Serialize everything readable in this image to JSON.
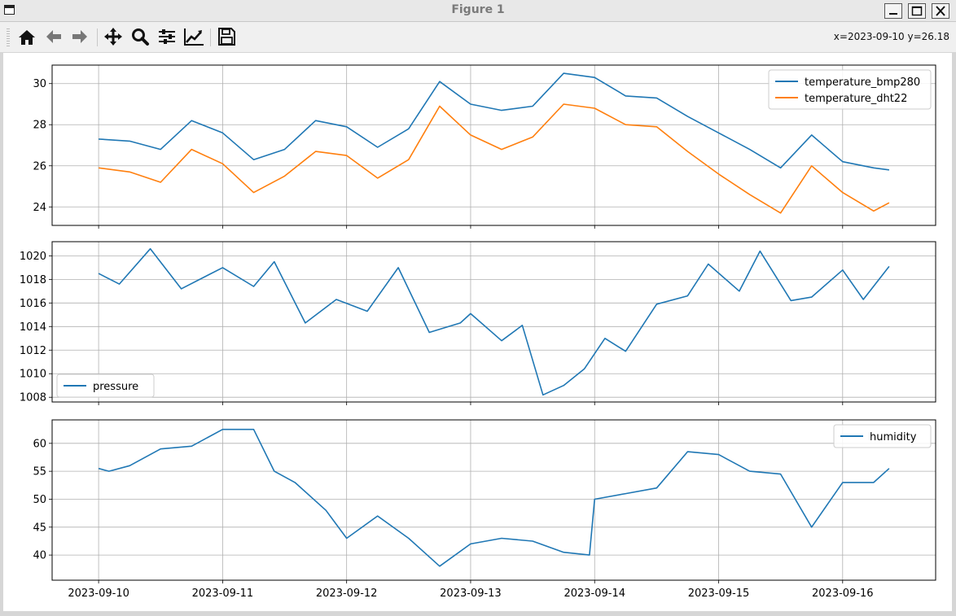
{
  "window": {
    "title": "Figure 1"
  },
  "toolbar": {
    "coords": "x=2023-09-10 y=26.18",
    "buttons": [
      "home-icon",
      "back-arrow-icon",
      "forward-arrow-icon",
      "pan-icon",
      "zoom-icon",
      "configure-subplots-icon",
      "edit-axis-icon",
      "save-icon"
    ]
  },
  "chart_data": [
    {
      "type": "line",
      "series": [
        {
          "name": "temperature_bmp280",
          "color": "#1f77b4",
          "x": [
            "2023-09-10 00:00",
            "2023-09-10 06:00",
            "2023-09-10 12:00",
            "2023-09-10 18:00",
            "2023-09-11 00:00",
            "2023-09-11 06:00",
            "2023-09-11 12:00",
            "2023-09-11 18:00",
            "2023-09-12 00:00",
            "2023-09-12 06:00",
            "2023-09-12 12:00",
            "2023-09-12 18:00",
            "2023-09-13 00:00",
            "2023-09-13 06:00",
            "2023-09-13 12:00",
            "2023-09-13 18:00",
            "2023-09-14 00:00",
            "2023-09-14 06:00",
            "2023-09-14 12:00",
            "2023-09-14 18:00",
            "2023-09-15 00:00",
            "2023-09-15 06:00",
            "2023-09-15 12:00",
            "2023-09-15 18:00",
            "2023-09-16 00:00",
            "2023-09-16 06:00",
            "2023-09-16 09:00"
          ],
          "y": [
            27.3,
            27.2,
            26.8,
            28.2,
            27.6,
            26.3,
            26.8,
            28.2,
            27.9,
            26.9,
            27.8,
            30.1,
            29.0,
            28.7,
            28.9,
            30.5,
            30.3,
            29.4,
            29.3,
            28.4,
            27.6,
            26.8,
            25.9,
            27.5,
            26.2,
            25.9,
            25.8
          ]
        },
        {
          "name": "temperature_dht22",
          "color": "#ff7f0e",
          "x": [
            "2023-09-10 00:00",
            "2023-09-10 06:00",
            "2023-09-10 12:00",
            "2023-09-10 18:00",
            "2023-09-11 00:00",
            "2023-09-11 06:00",
            "2023-09-11 12:00",
            "2023-09-11 18:00",
            "2023-09-12 00:00",
            "2023-09-12 06:00",
            "2023-09-12 12:00",
            "2023-09-12 18:00",
            "2023-09-13 00:00",
            "2023-09-13 06:00",
            "2023-09-13 12:00",
            "2023-09-13 18:00",
            "2023-09-14 00:00",
            "2023-09-14 06:00",
            "2023-09-14 12:00",
            "2023-09-14 18:00",
            "2023-09-15 00:00",
            "2023-09-15 06:00",
            "2023-09-15 12:00",
            "2023-09-15 18:00",
            "2023-09-16 00:00",
            "2023-09-16 06:00",
            "2023-09-16 09:00"
          ],
          "y": [
            25.9,
            25.7,
            25.2,
            26.8,
            26.1,
            24.7,
            25.5,
            26.7,
            26.5,
            25.4,
            26.3,
            28.9,
            27.5,
            26.8,
            27.4,
            29.0,
            28.8,
            28.0,
            27.9,
            26.7,
            25.6,
            24.6,
            23.7,
            26.0,
            24.7,
            23.8,
            24.2
          ]
        }
      ],
      "ylim": [
        23.1,
        30.9
      ],
      "yticks": [
        24,
        26,
        28,
        30
      ],
      "legend": "top-right",
      "grid": true
    },
    {
      "type": "line",
      "series": [
        {
          "name": "pressure",
          "color": "#1f77b4",
          "x": [
            "2023-09-10 00:00",
            "2023-09-10 04:00",
            "2023-09-10 10:00",
            "2023-09-10 16:00",
            "2023-09-11 00:00",
            "2023-09-11 06:00",
            "2023-09-11 10:00",
            "2023-09-11 16:00",
            "2023-09-11 22:00",
            "2023-09-12 04:00",
            "2023-09-12 10:00",
            "2023-09-12 16:00",
            "2023-09-12 22:00",
            "2023-09-13 00:00",
            "2023-09-13 06:00",
            "2023-09-13 10:00",
            "2023-09-13 14:00",
            "2023-09-13 18:00",
            "2023-09-13 22:00",
            "2023-09-14 02:00",
            "2023-09-14 06:00",
            "2023-09-14 12:00",
            "2023-09-14 18:00",
            "2023-09-14 22:00",
            "2023-09-15 04:00",
            "2023-09-15 08:00",
            "2023-09-15 14:00",
            "2023-09-15 18:00",
            "2023-09-16 00:00",
            "2023-09-16 04:00",
            "2023-09-16 09:00"
          ],
          "y": [
            1018.5,
            1017.6,
            1020.6,
            1017.2,
            1019.0,
            1017.4,
            1019.5,
            1014.3,
            1016.3,
            1015.3,
            1019.0,
            1013.5,
            1014.3,
            1015.1,
            1012.8,
            1014.1,
            1008.2,
            1009.0,
            1010.4,
            1013.0,
            1011.9,
            1015.9,
            1016.6,
            1019.3,
            1017.0,
            1020.4,
            1016.2,
            1016.5,
            1018.8,
            1016.3,
            1019.1
          ]
        }
      ],
      "ylim": [
        1007.6,
        1021.2
      ],
      "yticks": [
        1008,
        1010,
        1012,
        1014,
        1016,
        1018,
        1020
      ],
      "legend": "bottom-left",
      "grid": true
    },
    {
      "type": "line",
      "series": [
        {
          "name": "humidity",
          "color": "#1f77b4",
          "x": [
            "2023-09-10 00:00",
            "2023-09-10 02:00",
            "2023-09-10 06:00",
            "2023-09-10 12:00",
            "2023-09-10 18:00",
            "2023-09-11 00:00",
            "2023-09-11 06:00",
            "2023-09-11 10:00",
            "2023-09-11 14:00",
            "2023-09-11 20:00",
            "2023-09-12 00:00",
            "2023-09-12 06:00",
            "2023-09-12 12:00",
            "2023-09-12 18:00",
            "2023-09-13 00:00",
            "2023-09-13 06:00",
            "2023-09-13 12:00",
            "2023-09-13 18:00",
            "2023-09-13 23:00",
            "2023-09-14 00:00",
            "2023-09-14 06:00",
            "2023-09-14 12:00",
            "2023-09-14 18:00",
            "2023-09-15 00:00",
            "2023-09-15 06:00",
            "2023-09-15 12:00",
            "2023-09-15 18:00",
            "2023-09-16 00:00",
            "2023-09-16 06:00",
            "2023-09-16 09:00"
          ],
          "y": [
            55.5,
            55.0,
            56.0,
            59.0,
            59.5,
            62.5,
            62.5,
            55.0,
            53.0,
            48.0,
            43.0,
            47.0,
            43.0,
            38.0,
            42.0,
            43.0,
            42.5,
            40.5,
            40.0,
            50.0,
            51.0,
            52.0,
            58.5,
            58.0,
            55.0,
            54.5,
            45.0,
            53.0,
            53.0,
            55.5
          ]
        }
      ],
      "ylim": [
        35.5,
        64.2
      ],
      "yticks": [
        40,
        45,
        50,
        55,
        60
      ],
      "legend": "top-right",
      "grid": true
    }
  ],
  "xaxis": {
    "ticks": [
      "2023-09-10",
      "2023-09-11",
      "2023-09-12",
      "2023-09-13",
      "2023-09-14",
      "2023-09-15",
      "2023-09-16"
    ],
    "range": [
      "2023-09-09 15:00",
      "2023-09-16 18:00"
    ]
  }
}
